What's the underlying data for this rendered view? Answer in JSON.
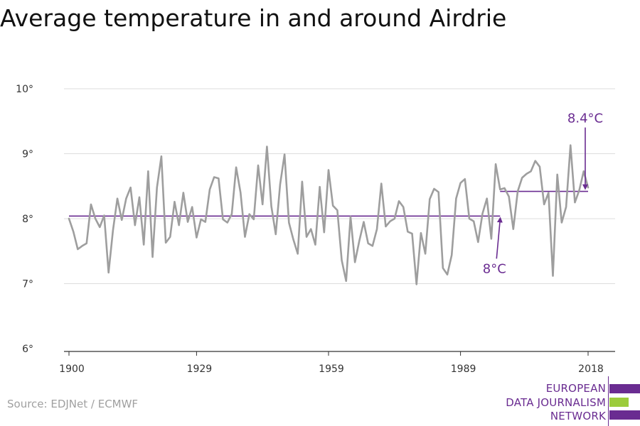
{
  "title": "Average temperature in and around Airdrie",
  "source": "Source: EDJNet / ECMWF",
  "logo": {
    "lines": [
      "EUROPEAN",
      "DATA JOURNALISM",
      "NETWORK"
    ],
    "colors": {
      "purple": "#6a2c91",
      "green": "#9ccc3c"
    }
  },
  "colors": {
    "series": "#9e9e9e",
    "mean": "#6a2c91",
    "grid": "#dddddd",
    "axis": "#333333"
  },
  "chart_data": {
    "type": "line",
    "title": "Average temperature in and around Airdrie",
    "xlabel": "",
    "ylabel": "",
    "xlim": [
      1900,
      2018
    ],
    "ylim": [
      6,
      10
    ],
    "grid": true,
    "x_ticks": [
      1900,
      1929,
      1959,
      1989,
      2018
    ],
    "x_tick_labels": [
      "1900",
      "1929",
      "1959",
      "1989",
      "2018"
    ],
    "y_ticks": [
      6,
      7,
      8,
      9,
      10
    ],
    "y_tick_labels": [
      "6°",
      "7°",
      "8°",
      "9°",
      "10°"
    ],
    "series": [
      {
        "x": [
          1900,
          1901,
          1902,
          1903,
          1904,
          1905,
          1906,
          1907,
          1908,
          1909,
          1910,
          1911,
          1912,
          1913,
          1914,
          1915,
          1916,
          1917,
          1918,
          1919,
          1920,
          1921,
          1922,
          1923,
          1924,
          1925,
          1926,
          1927,
          1928,
          1929,
          1930,
          1931,
          1932,
          1933,
          1934,
          1935,
          1936,
          1937,
          1938,
          1939,
          1940,
          1941,
          1942,
          1943,
          1944,
          1945,
          1946,
          1947,
          1948,
          1949,
          1950,
          1951,
          1952,
          1953,
          1954,
          1955,
          1956,
          1957,
          1958,
          1959,
          1960,
          1961,
          1962,
          1963,
          1964,
          1965,
          1966,
          1967,
          1968,
          1969,
          1970,
          1971,
          1972,
          1973,
          1974,
          1975,
          1976,
          1977,
          1978,
          1979,
          1980,
          1981,
          1982,
          1983,
          1984,
          1985,
          1986,
          1987,
          1988,
          1989,
          1990,
          1991,
          1992,
          1993,
          1994,
          1995,
          1996,
          1997,
          1998,
          1999,
          2000,
          2001,
          2002,
          2003,
          2004,
          2005,
          2006,
          2007,
          2008,
          2009,
          2010,
          2011,
          2012,
          2013,
          2014,
          2015,
          2016,
          2017,
          2018,
          2019
        ],
        "values": [
          8.0,
          7.8,
          7.53,
          7.58,
          7.62,
          8.22,
          8.0,
          7.87,
          8.05,
          7.17,
          7.82,
          8.31,
          7.98,
          8.31,
          8.48,
          7.9,
          8.33,
          7.6,
          8.73,
          7.41,
          8.48,
          8.96,
          7.63,
          7.72,
          8.26,
          7.9,
          8.4,
          7.95,
          8.18,
          7.71,
          7.99,
          7.95,
          8.45,
          8.64,
          8.62,
          7.99,
          7.94,
          8.07,
          8.79,
          8.4,
          7.72,
          8.07,
          7.99,
          8.82,
          8.22,
          9.11,
          8.19,
          7.76,
          8.53,
          8.99,
          7.94,
          7.68,
          7.46,
          8.57,
          7.72,
          7.84,
          7.6,
          8.49,
          7.79,
          8.75,
          8.2,
          8.13,
          7.36,
          7.04,
          8.03,
          7.33,
          7.66,
          7.95,
          7.62,
          7.58,
          7.84,
          8.54,
          7.88,
          7.96,
          8.0,
          8.27,
          8.18,
          7.8,
          7.77,
          6.99,
          7.78,
          7.46,
          8.3,
          8.46,
          8.41,
          7.24,
          7.14,
          7.44,
          8.31,
          8.55,
          8.61,
          8.0,
          7.96,
          7.64,
          8.08,
          8.31,
          7.69,
          8.84,
          8.45,
          8.47,
          8.34,
          7.84,
          8.42,
          8.63,
          8.69,
          8.73,
          8.89,
          8.8,
          8.22,
          8.4,
          7.12,
          8.68,
          7.94,
          8.18,
          9.13,
          8.25,
          8.44,
          8.73,
          8.48,
          null
        ]
      }
    ],
    "reference_lines": [
      {
        "label": "8°C",
        "value": 8.04,
        "x_start": 1900,
        "x_end": 1998
      },
      {
        "label": "8.4°C",
        "value": 8.42,
        "x_start": 1998,
        "x_end": 2018
      }
    ]
  }
}
